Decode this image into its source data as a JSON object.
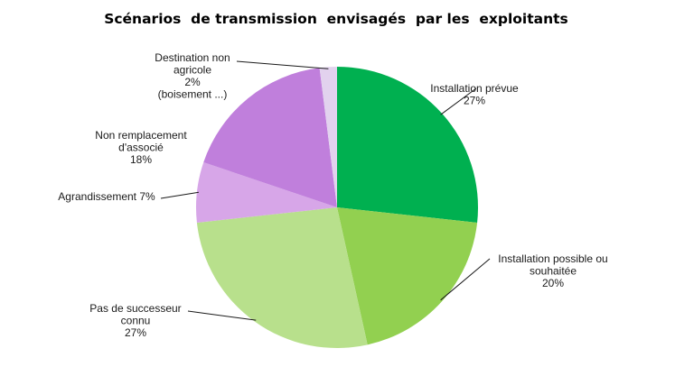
{
  "chart_data": {
    "type": "pie",
    "title": "Scénarios  de transmission  envisagés  par les  exploitants",
    "slices": [
      {
        "label_lines": [
          "Installation prévue",
          "27%"
        ],
        "value": 27,
        "color": "#00b050"
      },
      {
        "label_lines": [
          "Installation possible ou",
          "souhaitée",
          "20%"
        ],
        "value": 20,
        "color": "#92d050"
      },
      {
        "label_lines": [
          "Pas de successeur",
          "connu",
          "27%"
        ],
        "value": 27,
        "color": "#b8e08c"
      },
      {
        "label_lines": [
          "Agrandissement 7%"
        ],
        "value": 7,
        "color": "#d7a6e8"
      },
      {
        "label_lines": [
          "Non remplacement",
          "d'associé",
          "18%"
        ],
        "value": 18,
        "color": "#c07fdc"
      },
      {
        "label_lines": [
          "Destination non",
          "agricole",
          "2%",
          "(boisement ...)"
        ],
        "value": 2,
        "color": "#e2d2ee"
      }
    ],
    "start_angle_deg": 0,
    "direction": "clockwise",
    "legend": "none"
  }
}
